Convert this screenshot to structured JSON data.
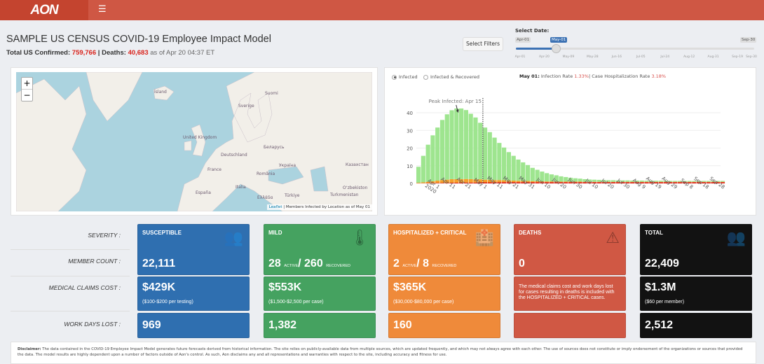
{
  "header": {
    "logo": "AON",
    "menu_icon": "hamburger-icon"
  },
  "title": "SAMPLE US CENSUS COVID-19 Employee Impact Model",
  "summary": {
    "confirmed_label": "Total US Confirmed:",
    "confirmed": "759,766",
    "sep": "|",
    "deaths_label": "Deaths:",
    "deaths": "40,683",
    "asof": "as of Apr 20 04:37 ET"
  },
  "filters_button": "Select Filters",
  "date_slider": {
    "label": "Select Date:",
    "min": "Apr-01",
    "max": "Sep-30",
    "value": "May-01",
    "fraction": 0.17,
    "ticks": [
      "Apr-01",
      "Apr-20",
      "May-09",
      "May-28",
      "Jun-16",
      "Jul-05",
      "Jul-24",
      "Aug-12",
      "Aug-31",
      "Sep-19",
      "Sep-30"
    ]
  },
  "map": {
    "zoom_in": "+",
    "zoom_out": "−",
    "attribution_link": "Leaflet",
    "attribution": "| Members Infected by Location as of May 01",
    "labels": [
      "Ísland",
      "Suomi",
      "Sverige",
      "United Kingdom",
      "Беларусь",
      "Deutschland",
      "Україна",
      "Казахстан",
      "France",
      "România",
      "Italia",
      "España",
      "Oʻzbekiston",
      "Türkiye",
      "Turkmenistan",
      "Ελλάδα"
    ]
  },
  "chart_panel": {
    "radio": [
      "Infected",
      "Infected & Recovered"
    ],
    "selected": "Infected",
    "rate_date": "May 01:",
    "infection_label": "Infection Rate",
    "infection_rate": "1.33%",
    "sep": "|",
    "hosp_label": "Case Hospitalization Rate",
    "hosp_rate": "3.18%"
  },
  "chart_data": {
    "type": "bar",
    "stacked": true,
    "x_start": "2020-03-20",
    "x_step_days": 3,
    "xticks": [
      "Apr 1\n2020",
      "Apr 11",
      "Apr 21",
      "May 1",
      "May 11",
      "May 21",
      "May 31",
      "Jun 10",
      "Jun 20",
      "Jun 30",
      "Jul 10",
      "Jul 20",
      "Jul 30",
      "Aug 9",
      "Aug 19",
      "Aug 29",
      "Sep 8",
      "Sep 18",
      "Sep 28"
    ],
    "yticks": [
      0,
      10,
      20,
      30,
      40
    ],
    "ylim": [
      0,
      48
    ],
    "grid": true,
    "annotation": {
      "text": "Peak Infected:  Apr 15",
      "date": "2020-04-15"
    },
    "marker_date": "2020-05-01",
    "colors": {
      "mild": "#9ee58f",
      "hospitalized": "#f5a02a",
      "deaths": "#e0190f"
    },
    "series": [
      {
        "key": "mild",
        "values": [
          9,
          15,
          21,
          26,
          30,
          34,
          37,
          39,
          40,
          40,
          39,
          37,
          35,
          32,
          29.5,
          27,
          24,
          21,
          18.5,
          16,
          14,
          12,
          10.5,
          9,
          7.5,
          6.5,
          5.5,
          4.7,
          4,
          3.5,
          3,
          2.6,
          2.2,
          1.9,
          1.7,
          1.5,
          1.3,
          1.2,
          1.1,
          1,
          0.9,
          0.9,
          0.8,
          0.8,
          0.8,
          0.7,
          0.7,
          0.7,
          0.6,
          0.6,
          0.6,
          0.6,
          0.6,
          0.5,
          0.5,
          0.5,
          0.5,
          0.5,
          0.5,
          0.5,
          0.5,
          0.5,
          0.5,
          0.5,
          0.5
        ]
      },
      {
        "key": "hospitalized",
        "values": [
          0.3,
          0.5,
          0.7,
          1,
          1.3,
          1.6,
          1.8,
          2,
          2,
          2,
          2,
          1.9,
          1.8,
          1.7,
          1.5,
          1.4,
          1.3,
          1.2,
          1.1,
          1,
          0.9,
          0.8,
          0.7,
          0.7,
          0.6,
          0.5,
          0.5,
          0.4,
          0.4,
          0.4,
          0.3,
          0.3,
          0.3,
          0.3,
          0.3,
          0.2,
          0.2,
          0.2,
          0.2,
          0.2,
          0.2,
          0.2,
          0.2,
          0.2,
          0.2,
          0.2,
          0.2,
          0.2,
          0.2,
          0.2,
          0.2,
          0.2,
          0.2,
          0.2,
          0.2,
          0.2,
          0.2,
          0.2,
          0.2,
          0.2,
          0.2,
          0.2,
          0.2,
          0.2,
          0.2
        ]
      },
      {
        "key": "deaths",
        "values": [
          0.1,
          0.1,
          0.2,
          0.2,
          0.3,
          0.3,
          0.3,
          0.4,
          0.4,
          0.4,
          0.5,
          0.5,
          0.5,
          0.6,
          0.6,
          0.6,
          0.6,
          0.7,
          0.7,
          0.7,
          0.7,
          0.7,
          0.7,
          0.7,
          0.7,
          0.7,
          0.7,
          0.7,
          0.7,
          0.7,
          0.7,
          0.7,
          0.7,
          0.7,
          0.7,
          0.7,
          0.7,
          0.7,
          0.7,
          0.7,
          0.7,
          0.7,
          0.7,
          0.7,
          0.7,
          0.7,
          0.7,
          0.7,
          0.7,
          0.7,
          0.7,
          0.7,
          0.7,
          0.7,
          0.7,
          0.7,
          0.7,
          0.7,
          0.7,
          0.7,
          0.7,
          0.7,
          0.7,
          0.7,
          0.7
        ]
      }
    ]
  },
  "rows": {
    "severity": "SEVERITY :",
    "member_count": "MEMBER COUNT :",
    "claims": "MEDICAL CLAIMS COST :",
    "workdays": "WORK DAYS LOST :"
  },
  "cards": {
    "susceptible": {
      "title": "SUSCEPTIBLE",
      "count": "22,111",
      "cost": "$429K",
      "cost_note": "($100-$200 per testing)",
      "days": "969",
      "color": "#2f6fb0"
    },
    "mild": {
      "title": "MILD",
      "active": "28",
      "active_lbl": "ACTIVE",
      "slash": "/",
      "recovered": "260",
      "recovered_lbl": "RECOVERED",
      "cost": "$553K",
      "cost_note": "($1,500-$2,500 per case)",
      "days": "1,382",
      "color": "#45a260"
    },
    "hosp": {
      "title": "HOSPITALIZED + CRITICAL",
      "active": "2",
      "active_lbl": "ACTIVE",
      "slash": "/",
      "recovered": "8",
      "recovered_lbl": "RECOVERED",
      "cost": "$365K",
      "cost_note": "($30,000-$80,000 per case)",
      "days": "160",
      "color": "#ef8a3a"
    },
    "deaths": {
      "title": "DEATHS",
      "count": "0",
      "note": "The medical claims cost and work days lost for cases resulting in deaths is included with the HOSPITALIZED + CRITICAL cases.",
      "color": "#d05844"
    },
    "total": {
      "title": "TOTAL",
      "count": "22,409",
      "cost": "$1.3M",
      "cost_note": "($60 per member)",
      "days": "2,512",
      "color": "#121212"
    }
  },
  "disclaimer": {
    "label": "Disclaimer:",
    "text": "The data contained in the COVID-19 Employee Impact Model generates future forecasts derived from historical information. The site relies on publicly-available data from multiple sources, which are updated frequently, and which may not always agree with each other. The use of sources does not constitute or imply endorsement of the organizations or sources that provided the data. The model results are highly dependent upon a number of factors outside of Aon's control. As such, Aon disclaims any and all representations and warranties with respect to the site, including accuracy and fitness for use."
  }
}
